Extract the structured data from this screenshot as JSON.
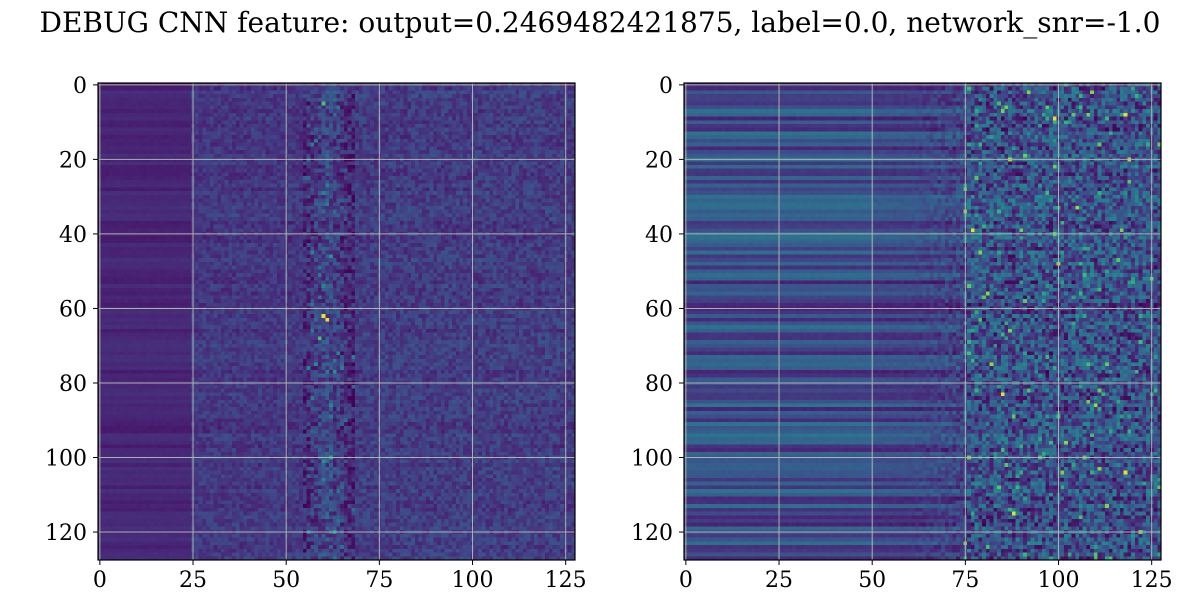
{
  "title": "DEBUG CNN feature: output=0.2469482421875, label=0.0, network_snr=-1.0",
  "colors": {
    "colormap": "viridis",
    "grid": "#b0b0b0",
    "axes": "#000000",
    "background": "#ffffff"
  },
  "chart_data": [
    {
      "type": "heatmap",
      "title": "",
      "xlabel": "",
      "ylabel": "",
      "rows": 128,
      "cols": 128,
      "xlim": [
        -0.5,
        127.5
      ],
      "ylim": [
        127.5,
        -0.5
      ],
      "y_axis_inverted": true,
      "grid": true,
      "colormap": "viridis",
      "xticks": [
        0,
        25,
        50,
        75,
        100,
        125
      ],
      "yticks": [
        0,
        20,
        40,
        60,
        80,
        100,
        120
      ],
      "xtick_labels": [
        "0",
        "25",
        "50",
        "75",
        "100",
        "125"
      ],
      "ytick_labels": [
        "0",
        "20",
        "40",
        "60",
        "80",
        "100",
        "120"
      ],
      "value_range": [
        0,
        1
      ],
      "pattern": {
        "left_band_end_col": 24,
        "left_band_level": 0.13,
        "mid_level": 0.2,
        "hot_band": [
          55,
          68
        ],
        "hot_band_center": 61,
        "hot_band_level": 0.28,
        "tail_start_col": 68,
        "tail_level": 0.22,
        "row_stripe_strength": 0.04,
        "peak_cells": [
          [
            62,
            60
          ],
          [
            63,
            61
          ],
          [
            5,
            60
          ],
          [
            68,
            59
          ]
        ]
      }
    },
    {
      "type": "heatmap",
      "title": "",
      "xlabel": "",
      "ylabel": "",
      "rows": 128,
      "cols": 128,
      "xlim": [
        -0.5,
        127.5
      ],
      "ylim": [
        127.5,
        -0.5
      ],
      "y_axis_inverted": true,
      "grid": true,
      "colormap": "viridis",
      "xticks": [
        0,
        25,
        50,
        75,
        100,
        125
      ],
      "yticks": [
        0,
        20,
        40,
        60,
        80,
        100,
        120
      ],
      "xtick_labels": [
        "0",
        "25",
        "50",
        "75",
        "100",
        "125"
      ],
      "ytick_labels": [
        "0",
        "20",
        "40",
        "60",
        "80",
        "100",
        "120"
      ],
      "value_range": [
        0,
        1
      ],
      "pattern": {
        "left_band_end_col": 50,
        "left_band_level": 0.3,
        "mid_level": 0.26,
        "fade_start_col": 60,
        "speckle_start_col": 75,
        "speckle_level": 0.3,
        "row_stripe_strength": 0.14,
        "peak_cells": [
          [
            9,
            99
          ],
          [
            39,
            77
          ],
          [
            83,
            85
          ],
          [
            115,
            88
          ],
          [
            104,
            118
          ],
          [
            8,
            118
          ]
        ]
      }
    }
  ]
}
